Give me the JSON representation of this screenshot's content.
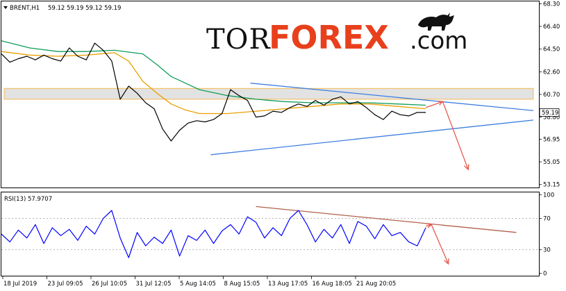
{
  "chart_data": [
    {
      "type": "line",
      "panel": "price",
      "symbol_label": "BRENT,H1",
      "ohlc_text": "59.12 59.19 59.12 59.19",
      "last_price_badge": "59.19",
      "y_ticks": [
        "68.30",
        "66.40",
        "64.50",
        "62.60",
        "60.70",
        "58.80",
        "56.95",
        "55.05",
        "53.15"
      ],
      "y_tick_values": [
        68.3,
        66.4,
        64.5,
        62.6,
        60.7,
        58.8,
        56.95,
        55.05,
        53.15
      ],
      "ylim": [
        52.9,
        68.5
      ],
      "x_labels": [
        "18 Jul 2019",
        "23 Jul 09:05",
        "26 Jul 10:05",
        "31 Jul 12:05",
        "5 Aug 14:05",
        "8 Aug 15:05",
        "13 Aug 17:05",
        "16 Aug 18:05",
        "21 Aug 20:05"
      ],
      "xlim": [
        0,
        190
      ],
      "series": [
        {
          "role": "price",
          "color": "#000000",
          "x": [
            0,
            3,
            6,
            9,
            12,
            15,
            18,
            21,
            24,
            27,
            30,
            33,
            36,
            39,
            42,
            45,
            48,
            51,
            54,
            57,
            60,
            63,
            66,
            69,
            72,
            75,
            78,
            81,
            84,
            87,
            90,
            93,
            96,
            99,
            102,
            105,
            108,
            111,
            114,
            117,
            120,
            123,
            126,
            129,
            132,
            135,
            138,
            141,
            144,
            147,
            150
          ],
          "y": [
            64.1,
            63.4,
            63.7,
            63.9,
            63.6,
            64.0,
            63.7,
            63.5,
            64.6,
            63.9,
            63.6,
            65.0,
            64.4,
            63.5,
            60.3,
            61.4,
            60.8,
            60.0,
            59.5,
            57.8,
            56.8,
            57.7,
            58.3,
            58.5,
            58.4,
            58.6,
            59.1,
            61.1,
            60.6,
            60.2,
            58.8,
            58.9,
            59.3,
            59.2,
            59.6,
            59.9,
            59.7,
            60.2,
            59.8,
            60.3,
            60.5,
            59.9,
            60.1,
            59.6,
            59.0,
            58.6,
            59.3,
            59.0,
            58.9,
            59.2,
            59.19
          ]
        },
        {
          "role": "moving-average-fast",
          "color": "#e8a000",
          "x": [
            0,
            10,
            20,
            30,
            40,
            45,
            50,
            55,
            60,
            65,
            70,
            80,
            90,
            100,
            110,
            120,
            130,
            140,
            150
          ],
          "y": [
            64.3,
            64.0,
            63.9,
            64.0,
            64.2,
            63.5,
            61.8,
            60.8,
            59.9,
            59.4,
            59.1,
            59.1,
            59.3,
            59.5,
            59.7,
            59.9,
            59.9,
            59.7,
            59.5
          ]
        },
        {
          "role": "moving-average-slow",
          "color": "#0f9d58",
          "x": [
            0,
            10,
            20,
            30,
            40,
            50,
            55,
            60,
            70,
            80,
            90,
            100,
            110,
            120,
            130,
            140,
            150
          ],
          "y": [
            65.2,
            64.6,
            64.3,
            64.3,
            64.4,
            64.1,
            63.2,
            62.2,
            61.1,
            60.6,
            60.3,
            60.1,
            60.0,
            60.0,
            60.0,
            59.9,
            59.8
          ]
        },
        {
          "role": "trendline-upper",
          "color": "#3f7fe0",
          "x": [
            88,
            188
          ],
          "y": [
            61.65,
            59.35
          ]
        },
        {
          "role": "trendline-lower",
          "color": "#3f7fe0",
          "x": [
            74,
            188
          ],
          "y": [
            55.65,
            58.55
          ]
        },
        {
          "role": "forecast-arrow",
          "color": "#e8584a",
          "x": [
            150,
            156,
            165
          ],
          "y": [
            59.6,
            60.1,
            54.4
          ]
        }
      ],
      "zone": {
        "y_from": 60.3,
        "y_to": 61.2,
        "x_from": 1,
        "x_to": 188,
        "color": "#f2c16d"
      }
    },
    {
      "type": "line",
      "panel": "rsi",
      "indicator_label": "RSI(13) 57.9707",
      "y_ticks": [
        "100",
        "70",
        "30",
        "0"
      ],
      "y_tick_values": [
        100,
        70,
        30,
        0
      ],
      "ylim": [
        -3,
        103
      ],
      "xlim": [
        0,
        190
      ],
      "series": [
        {
          "role": "rsi",
          "color": "#0000ff",
          "x": [
            0,
            3,
            6,
            9,
            12,
            15,
            18,
            21,
            24,
            27,
            30,
            33,
            36,
            39,
            42,
            45,
            48,
            51,
            54,
            57,
            60,
            63,
            66,
            69,
            72,
            75,
            78,
            81,
            84,
            87,
            90,
            93,
            96,
            99,
            102,
            105,
            108,
            111,
            114,
            117,
            120,
            123,
            126,
            129,
            132,
            135,
            138,
            141,
            144,
            147,
            150
          ],
          "y": [
            50,
            40,
            55,
            45,
            62,
            38,
            58,
            48,
            56,
            42,
            60,
            50,
            70,
            80,
            45,
            20,
            52,
            35,
            46,
            38,
            55,
            22,
            48,
            42,
            55,
            38,
            54,
            62,
            50,
            72,
            65,
            45,
            58,
            48,
            70,
            80,
            62,
            40,
            56,
            45,
            62,
            38,
            66,
            60,
            44,
            62,
            48,
            52,
            40,
            35,
            58
          ]
        },
        {
          "role": "rsi-trendline",
          "color": "#b0604a",
          "x": [
            90,
            182
          ],
          "y": [
            85,
            52
          ]
        },
        {
          "role": "rsi-forecast-arrow",
          "color": "#e8584a",
          "x": [
            150,
            152,
            158
          ],
          "y": [
            60,
            62,
            12
          ]
        }
      ],
      "levels": [
        70,
        30
      ]
    }
  ],
  "watermark": {
    "part1": "TOR",
    "part2": "FOREX",
    "part3": ".com",
    "brand_color": "#e8401c",
    "icon": "bull-icon"
  }
}
